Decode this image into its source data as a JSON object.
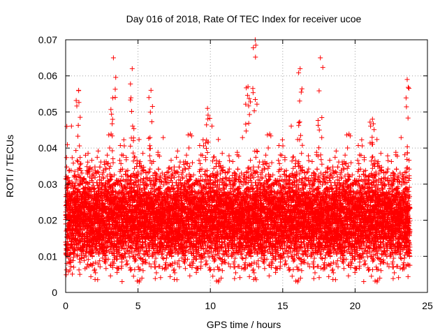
{
  "chart_data": {
    "type": "scatter",
    "title": "Day 016 of 2018, Rate Of TEC Index for receiver ucoe",
    "xlabel": "GPS time / hours",
    "ylabel": "ROTI / TECUs",
    "xlim": [
      0,
      25
    ],
    "ylim": [
      0,
      0.07
    ],
    "xticks": [
      0,
      5,
      10,
      15,
      20,
      25
    ],
    "xtick_labels": [
      "0",
      "5",
      "10",
      "15",
      "20",
      "25"
    ],
    "yticks": [
      0,
      0.01,
      0.02,
      0.03,
      0.04,
      0.05,
      0.06,
      0.07
    ],
    "ytick_labels": [
      "0",
      "0.01",
      "0.02",
      "0.03",
      "0.04",
      "0.05",
      "0.06",
      "0.07"
    ],
    "grid": true,
    "marker": "+",
    "color": "#ff0000",
    "series": [
      {
        "name": "ROTI",
        "x_range": [
          0,
          23.8
        ],
        "sampling_interval_hours": 0.01,
        "typical_range": [
          0.005,
          0.035
        ],
        "peaks": [
          {
            "x": 0.9,
            "y": 0.056
          },
          {
            "x": 3.3,
            "y": 0.065
          },
          {
            "x": 4.6,
            "y": 0.062
          },
          {
            "x": 5.9,
            "y": 0.056
          },
          {
            "x": 9.8,
            "y": 0.051
          },
          {
            "x": 12.6,
            "y": 0.057
          },
          {
            "x": 13.1,
            "y": 0.07
          },
          {
            "x": 16.2,
            "y": 0.062
          },
          {
            "x": 17.6,
            "y": 0.065
          },
          {
            "x": 21.2,
            "y": 0.048
          },
          {
            "x": 23.6,
            "y": 0.059
          }
        ],
        "lows": [
          {
            "x": 3.9,
            "y": 0.003
          },
          {
            "x": 13.1,
            "y": 0.004
          },
          {
            "x": 20.6,
            "y": 0.003
          }
        ]
      }
    ]
  }
}
